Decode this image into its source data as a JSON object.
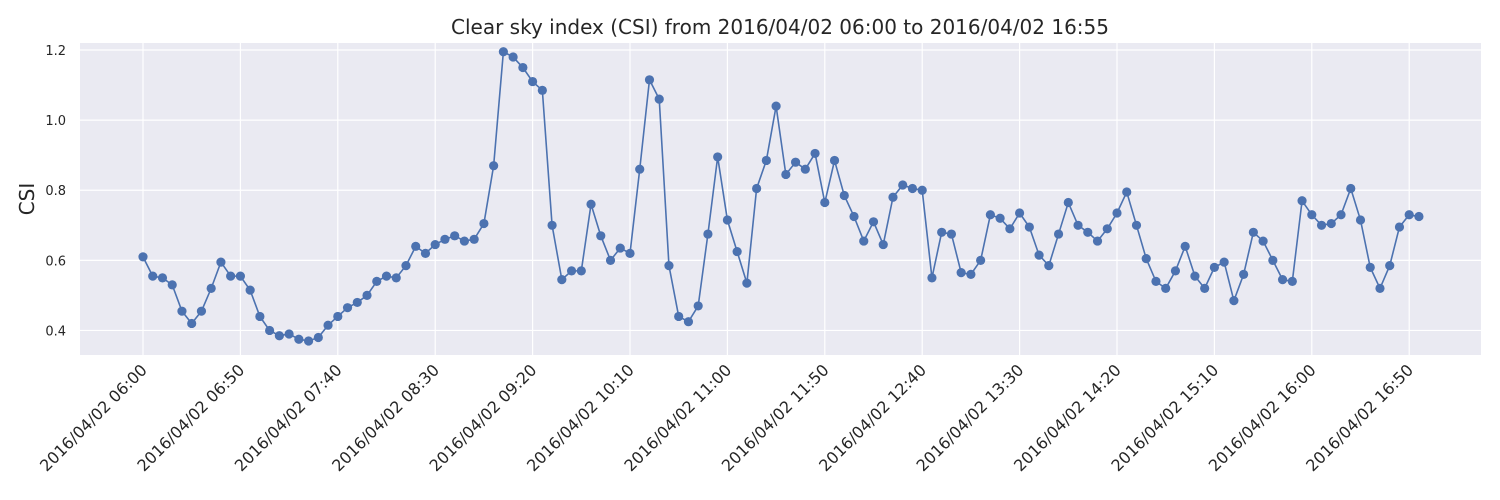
{
  "chart_data": {
    "type": "line",
    "title": "Clear sky index (CSI) from 2016/04/02 06:00 to 2016/04/02 16:55",
    "xlabel": "",
    "ylabel": "CSI",
    "x_start": "2016/04/02 06:00",
    "x_end": "2016/04/02 16:55",
    "x_interval_minutes": 5,
    "x_tick_labels": [
      "2016/04/02 06:00",
      "2016/04/02 06:50",
      "2016/04/02 07:40",
      "2016/04/02 08:30",
      "2016/04/02 09:20",
      "2016/04/02 10:10",
      "2016/04/02 11:00",
      "2016/04/02 11:50",
      "2016/04/02 12:40",
      "2016/04/02 13:30",
      "2016/04/02 14:20",
      "2016/04/02 15:10",
      "2016/04/02 16:00",
      "2016/04/02 16:50"
    ],
    "y_ticks": [
      0.4,
      0.6,
      0.8,
      1.0,
      1.2
    ],
    "y_tick_labels": [
      "0.4",
      "0.6",
      "0.8",
      "1.0",
      "1.2"
    ],
    "ylim": [
      0.33,
      1.22
    ],
    "grid": true,
    "color": "#4c72b0",
    "background": "#eaeaf2",
    "series": [
      {
        "values": [
          0.61,
          0.555,
          0.55,
          0.53,
          0.455,
          0.42,
          0.455,
          0.52,
          0.595,
          0.555,
          0.555,
          0.515,
          0.44,
          0.4,
          0.385,
          0.39,
          0.375,
          0.37,
          0.38,
          0.415,
          0.44,
          0.465,
          0.48,
          0.5,
          0.54,
          0.555,
          0.55,
          0.585,
          0.64,
          0.62,
          0.645,
          0.66,
          0.67,
          0.655,
          0.66,
          0.705,
          0.87,
          1.195,
          1.18,
          1.15,
          1.11,
          1.085,
          0.7,
          0.545,
          0.57,
          0.57,
          0.76,
          0.67,
          0.6,
          0.635,
          0.62,
          0.86,
          1.115,
          1.06,
          0.585,
          0.44,
          0.425,
          0.47,
          0.675,
          0.895,
          0.715,
          0.625,
          0.535,
          0.805,
          0.885,
          1.04,
          0.845,
          0.88,
          0.86,
          0.905,
          0.765,
          0.885,
          0.785,
          0.725,
          0.655,
          0.71,
          0.645,
          0.78,
          0.815,
          0.805,
          0.8,
          0.55,
          0.68,
          0.675,
          0.565,
          0.56,
          0.6,
          0.73,
          0.72,
          0.69,
          0.735,
          0.695,
          0.615,
          0.585,
          0.675,
          0.765,
          0.7,
          0.68,
          0.655,
          0.69,
          0.735,
          0.795,
          0.7,
          0.605,
          0.54,
          0.52,
          0.57,
          0.64,
          0.555,
          0.52,
          0.58,
          0.595,
          0.485,
          0.56,
          0.68,
          0.655,
          0.6,
          0.545,
          0.54,
          0.77,
          0.73,
          0.7,
          0.705,
          0.73,
          0.805,
          0.715,
          0.58,
          0.52,
          0.585,
          0.695,
          0.73,
          0.725
        ]
      }
    ]
  }
}
